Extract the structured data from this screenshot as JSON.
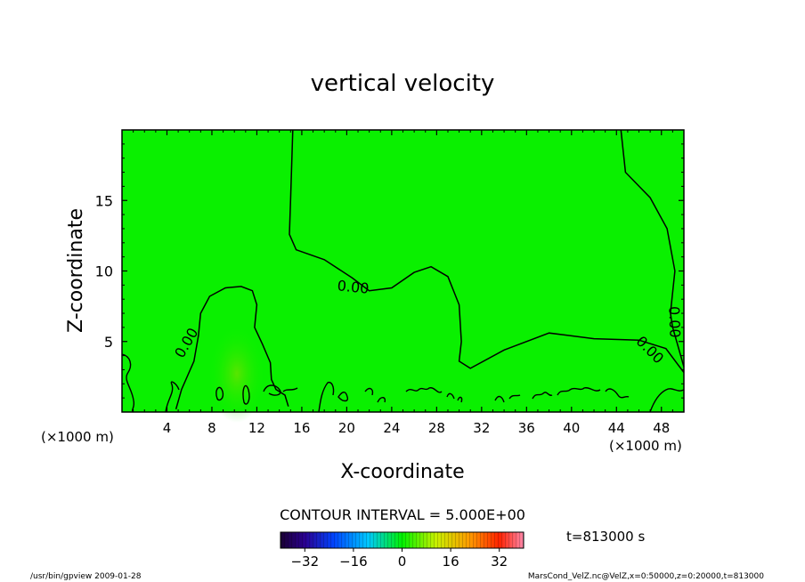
{
  "chart_data": {
    "type": "contour",
    "title": "vertical velocity",
    "xlabel": "X-coordinate",
    "ylabel": "Z-coordinate",
    "x_unit_left": "(×1000 m)",
    "x_unit_right": "(×1000 m)",
    "xlim": [
      0,
      50
    ],
    "ylim": [
      0,
      20
    ],
    "xticks": [
      4,
      8,
      12,
      16,
      20,
      24,
      28,
      32,
      36,
      40,
      44,
      48
    ],
    "yticks": [
      5,
      10,
      15
    ],
    "contour_interval_text": "CONTOUR INTERVAL = 5.000E+00",
    "contour_labels": [
      "0.00",
      "0.00",
      "0.00",
      "0.00"
    ],
    "time_text": "t=813000 s",
    "colorbar": {
      "range": [
        -40,
        40
      ],
      "ticks": [
        -32,
        -16,
        0,
        16,
        32
      ]
    },
    "fill_color": "#0af000",
    "zero_contours": [
      [
        [
          15.2,
          20
        ],
        [
          15.0,
          15
        ],
        [
          14.9,
          12.6
        ],
        [
          15.5,
          11.5
        ],
        [
          18,
          10.8
        ],
        [
          20.5,
          9.5
        ],
        [
          22,
          8.6
        ],
        [
          24,
          8.8
        ],
        [
          26,
          9.9
        ],
        [
          27.5,
          10.3
        ],
        [
          29,
          9.6
        ],
        [
          30,
          7.6
        ],
        [
          30.2,
          5
        ],
        [
          30,
          3.6
        ],
        [
          31,
          3.1
        ],
        [
          34,
          4.4
        ],
        [
          38,
          5.6
        ],
        [
          42,
          5.2
        ],
        [
          46,
          5.1
        ],
        [
          48.4,
          4.5
        ],
        [
          50,
          2.8
        ]
      ],
      [
        [
          44.4,
          20
        ],
        [
          44.8,
          17
        ],
        [
          47,
          15.2
        ],
        [
          48.5,
          13
        ],
        [
          49.2,
          10
        ],
        [
          48.8,
          7
        ],
        [
          49,
          6
        ],
        [
          50,
          3.2
        ]
      ],
      [
        [
          4.8,
          0.2
        ],
        [
          5.3,
          1.6
        ],
        [
          6.4,
          3.6
        ],
        [
          6.8,
          5.4
        ],
        [
          7,
          7
        ],
        [
          7.8,
          8.2
        ],
        [
          9.2,
          8.8
        ],
        [
          10.6,
          8.9
        ],
        [
          11.6,
          8.6
        ],
        [
          12,
          7.6
        ],
        [
          11.8,
          6
        ],
        [
          12.5,
          4.8
        ],
        [
          13.2,
          3.5
        ],
        [
          13.3,
          2.3
        ],
        [
          13.7,
          1.6
        ],
        [
          14.5,
          1.2
        ],
        [
          14.8,
          0.4
        ]
      ]
    ]
  },
  "footer": {
    "left": "/usr/bin/gpview  2009-01-28",
    "right": "MarsCond_VelZ.nc@VelZ,x=0:50000,z=0:20000,t=813000"
  }
}
